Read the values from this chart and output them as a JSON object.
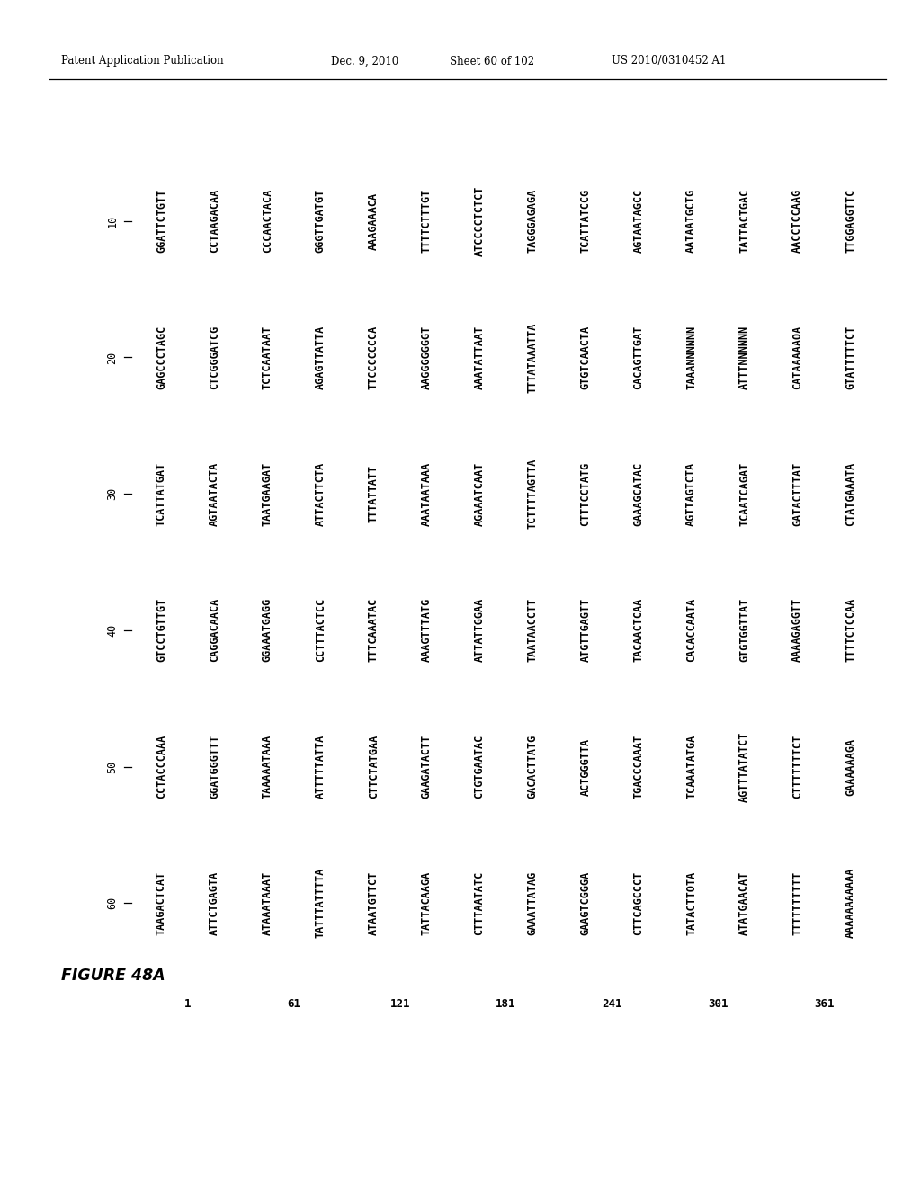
{
  "header_left": "Patent Application Publication",
  "header_mid": "Dec. 9, 2010",
  "header_mid2": "Sheet 60 of 102",
  "header_right": "US 2010/0310452 A1",
  "figure_label": "FIGURE 48A",
  "tick_labels": [
    "10",
    "20",
    "30",
    "40",
    "50",
    "60"
  ],
  "sequences": [
    {
      "label": "1",
      "top": "GGATTCTGTT GAGCCCTAGC TCATTATGAT GTCCTGTTGT CCTACCCAAA TAAGACTCAT",
      "bot": "CCTAAGACAA CTCGGGATCG AGTAATACTA CAGGACAACA GGATGGGTTT ATTCTGAGTA"
    },
    {
      "label": "61",
      "top": "CCCAACTACA TCTCAATAAT TAATGAAGAT GGAAATGAGG TAAAAATAAA ATAAATAAAT",
      "bot": "GGGTTGATGT AGAGTTATTA ATTACTTCTA CCTTTACTCC ATTTTTATTA TATTTATTTTA"
    },
    {
      "label": "121",
      "top": "AAAGAAACA  TTCCCCCCCA TTTATTATT  TTTCAAATAC CTTCTATGAA ATAATGTTCT",
      "bot": "TTTTCTTTGT AAGGGGGGGT AAATAATAAA AAAGTTTATG GAAGATACTT TATTACAAGA"
    },
    {
      "label": "181",
      "top": "ATCCCCTCTCT AAATATTAAT AGAAATCAAT ATTATTGGAA CTGTGAATAC CTTTAATATC",
      "bot": "TAGGGAGAGA TTTATAAATTA TCTTTTAGTTA TAATAACCTT GACACTTATG GAAATTATAG"
    },
    {
      "label": "241",
      "top": "TCATTATCCG GTGTCAACTA CTTTCCTATG ATGTTGAGTT ACTGGGTTA  GAAGTCGGGA",
      "bot": "AGTAATAGCC CACAGTTGAT GAAAGCATAC TACAACTCAA TGACCCAAAT CTTCAGCCCT"
    },
    {
      "label": "301",
      "top": "AATAATGCTG TAAANNNNNN AGTTAGTCTA CACACCAATA TCAAATATGA TATACTTOTA",
      "bot": "TATTACTGAC ATTTNNNNNN TCAATCAGAT GTGTGGTTAT AGTTTATATCT ATATGAACAT"
    },
    {
      "label": "361",
      "top": "AACCTCCAAG CATAAAAAOA GATACTTTAT AAAAGAGGTT CTTTTTTTCT TTTTTTTTTT",
      "bot": "TTGGAGGTTC GTATTTTTCT CTATGAAATA TTTTCTCCAA GAAAAAAGA  AAAAAAAAAAA"
    }
  ]
}
